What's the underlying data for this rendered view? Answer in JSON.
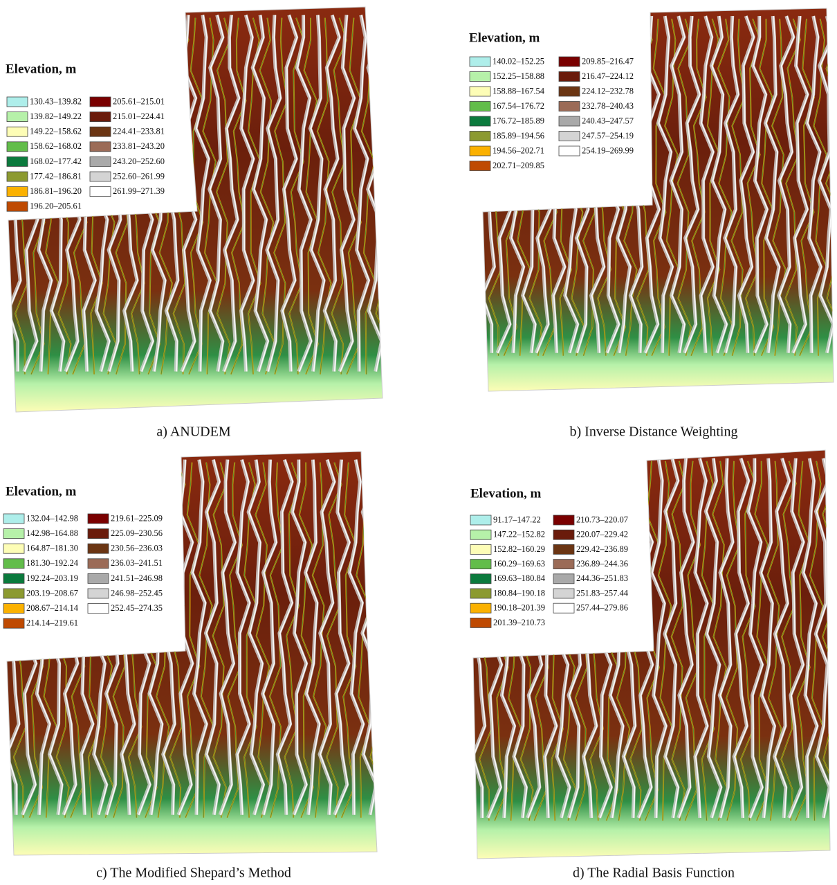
{
  "legend_colors": [
    "#aeeeea",
    "#b6f1a9",
    "#fdfdb6",
    "#62bd4a",
    "#0b7a3d",
    "#8c9a30",
    "#fbb100",
    "#bf4a02",
    "#7a0000",
    "#6a1b0b",
    "#6b3513",
    "#9b6b57",
    "#a9a9a9",
    "#d4d4d4",
    "#ffffff"
  ],
  "panels": [
    {
      "caption": "a) ANUDEM",
      "legend_title": "Elevation, m",
      "items": [
        "130.43–139.82",
        "139.82–149.22",
        "149.22–158.62",
        "158.62–168.02",
        "168.02–177.42",
        "177.42–186.81",
        "186.81–196.20",
        "196.20–205.61",
        "205.61–215.01",
        "215.01–224.41",
        "224.41–233.81",
        "233.81–243.20",
        "243.20–252.60",
        "252.60–261.99",
        "261.99–271.39"
      ]
    },
    {
      "caption": "b) Inverse Distance Weighting",
      "legend_title": "Elevation, m",
      "items": [
        "140.02–152.25",
        "152.25–158.88",
        "158.88–167.54",
        "167.54–176.72",
        "176.72–185.89",
        "185.89–194.56",
        "194.56–202.71",
        "202.71–209.85",
        "209.85–216.47",
        "216.47–224.12",
        "224.12–232.78",
        "232.78–240.43",
        "240.43–247.57",
        "247.57–254.19",
        "254.19–269.99"
      ]
    },
    {
      "caption": "c) The Modified Shepard’s Method",
      "legend_title": "Elevation, m",
      "items": [
        "132.04–142.98",
        "142.98–164.88",
        "164.87–181.30",
        "181.30–192.24",
        "192.24–203.19",
        "203.19–208.67",
        "208.67–214.14",
        "214.14–219.61",
        "219.61–225.09",
        "225.09–230.56",
        "230.56–236.03",
        "236.03–241.51",
        "241.51–246.98",
        "246.98–252.45",
        "252.45–274.35"
      ]
    },
    {
      "caption": "d) The Radial Basis Function",
      "legend_title": "Elevation, m",
      "items": [
        "91.17–147.22",
        "147.22–152.82",
        "152.82–160.29",
        "160.29–169.63",
        "169.63–180.84",
        "180.84–190.18",
        "190.18–201.39",
        "201.39–210.73",
        "210.73–220.07",
        "220.07–229.42",
        "229.42–236.89",
        "236.89–244.36",
        "244.36–251.83",
        "251.83–257.44",
        "257.44–279.86"
      ]
    }
  ]
}
